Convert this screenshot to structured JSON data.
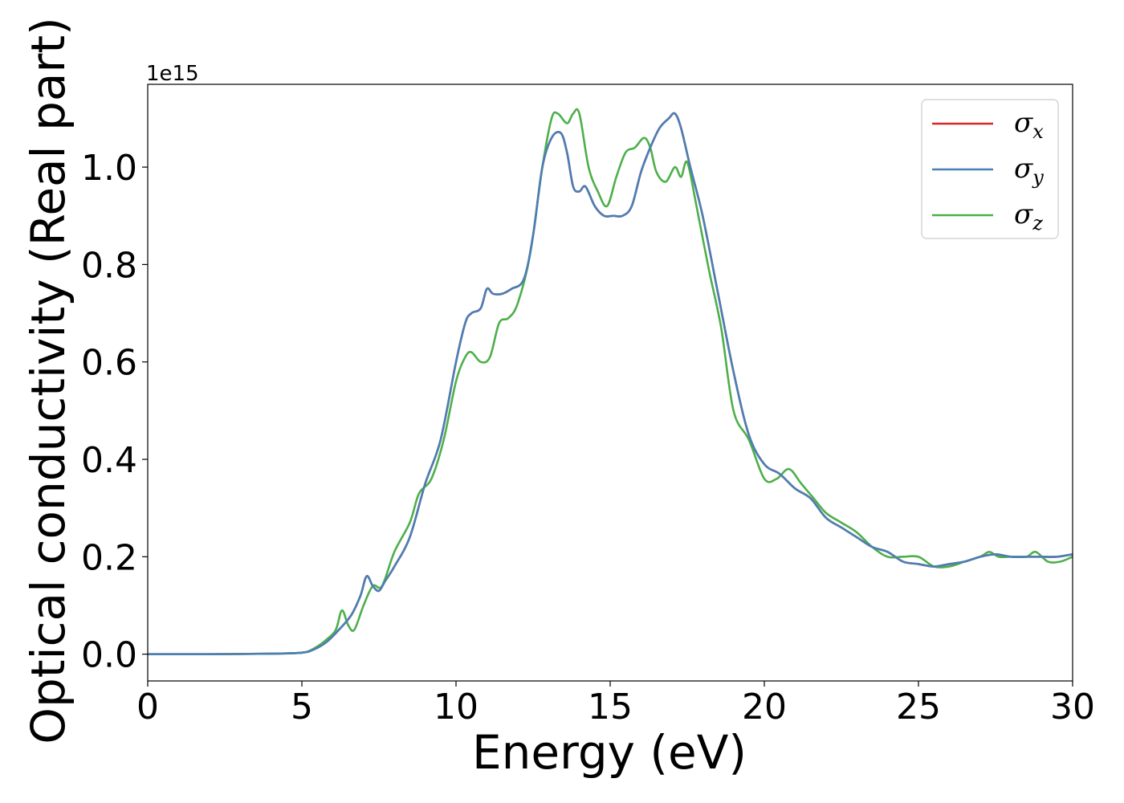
{
  "chart_data": {
    "type": "line",
    "xlabel": "Energy (eV)",
    "ylabel": "Optical conductivity (Real part)",
    "y_offset_label": "1e15",
    "xlim": [
      0,
      30
    ],
    "ylim": [
      -0.055,
      1.17
    ],
    "x_ticks": [
      0,
      5,
      10,
      15,
      20,
      25,
      30
    ],
    "x_tick_labels": [
      "0",
      "5",
      "10",
      "15",
      "20",
      "25",
      "30"
    ],
    "y_ticks": [
      0.0,
      0.2,
      0.4,
      0.6,
      0.8,
      1.0
    ],
    "y_tick_labels": [
      "0.0",
      "0.2",
      "0.4",
      "0.6",
      "0.8",
      "1.0"
    ],
    "grid": false,
    "legend_position": "top-right",
    "series": [
      {
        "name": "σ",
        "subscript": "x",
        "color": "#d62728",
        "x": [
          0,
          2,
          4,
          5,
          5.4,
          5.8,
          6.2,
          6.6,
          6.9,
          7.1,
          7.3,
          7.5,
          7.7,
          8.0,
          8.5,
          9.0,
          9.5,
          10.0,
          10.3,
          10.5,
          10.8,
          11.0,
          11.2,
          11.5,
          11.8,
          12.2,
          12.5,
          12.8,
          13.1,
          13.4,
          13.6,
          13.8,
          14.0,
          14.2,
          14.5,
          14.8,
          15.1,
          15.4,
          15.7,
          16.0,
          16.3,
          16.6,
          16.9,
          17.1,
          17.3,
          17.6,
          18.0,
          18.5,
          19.0,
          19.5,
          20.0,
          20.5,
          21.0,
          21.5,
          22.0,
          22.5,
          23.0,
          23.5,
          24.0,
          24.5,
          25.0,
          25.5,
          26.0,
          26.5,
          27.0,
          27.5,
          28.0,
          28.5,
          29.0,
          29.5,
          30.0
        ],
        "values": [
          0.0,
          0.0,
          0.001,
          0.003,
          0.01,
          0.025,
          0.05,
          0.08,
          0.12,
          0.16,
          0.14,
          0.13,
          0.15,
          0.18,
          0.24,
          0.35,
          0.44,
          0.6,
          0.68,
          0.7,
          0.71,
          0.75,
          0.74,
          0.74,
          0.75,
          0.77,
          0.86,
          1.0,
          1.06,
          1.07,
          1.03,
          0.96,
          0.95,
          0.96,
          0.92,
          0.9,
          0.9,
          0.9,
          0.92,
          0.99,
          1.04,
          1.08,
          1.1,
          1.11,
          1.08,
          1.0,
          0.9,
          0.74,
          0.58,
          0.45,
          0.39,
          0.37,
          0.34,
          0.32,
          0.28,
          0.26,
          0.24,
          0.22,
          0.21,
          0.19,
          0.185,
          0.18,
          0.185,
          0.19,
          0.2,
          0.205,
          0.2,
          0.2,
          0.2,
          0.2,
          0.205
        ]
      },
      {
        "name": "σ",
        "subscript": "y",
        "color": "#4a7fb5",
        "x": [
          0,
          2,
          4,
          5,
          5.4,
          5.8,
          6.2,
          6.6,
          6.9,
          7.1,
          7.3,
          7.5,
          7.7,
          8.0,
          8.5,
          9.0,
          9.5,
          10.0,
          10.3,
          10.5,
          10.8,
          11.0,
          11.2,
          11.5,
          11.8,
          12.2,
          12.5,
          12.8,
          13.1,
          13.4,
          13.6,
          13.8,
          14.0,
          14.2,
          14.5,
          14.8,
          15.1,
          15.4,
          15.7,
          16.0,
          16.3,
          16.6,
          16.9,
          17.1,
          17.3,
          17.6,
          18.0,
          18.5,
          19.0,
          19.5,
          20.0,
          20.5,
          21.0,
          21.5,
          22.0,
          22.5,
          23.0,
          23.5,
          24.0,
          24.5,
          25.0,
          25.5,
          26.0,
          26.5,
          27.0,
          27.5,
          28.0,
          28.5,
          29.0,
          29.5,
          30.0
        ],
        "values": [
          0.0,
          0.0,
          0.001,
          0.003,
          0.01,
          0.025,
          0.05,
          0.08,
          0.12,
          0.16,
          0.14,
          0.13,
          0.15,
          0.18,
          0.24,
          0.35,
          0.44,
          0.6,
          0.68,
          0.7,
          0.71,
          0.75,
          0.74,
          0.74,
          0.75,
          0.77,
          0.86,
          1.0,
          1.06,
          1.07,
          1.03,
          0.96,
          0.95,
          0.96,
          0.92,
          0.9,
          0.9,
          0.9,
          0.92,
          0.99,
          1.04,
          1.08,
          1.1,
          1.11,
          1.08,
          1.0,
          0.9,
          0.74,
          0.58,
          0.45,
          0.39,
          0.37,
          0.34,
          0.32,
          0.28,
          0.26,
          0.24,
          0.22,
          0.21,
          0.19,
          0.185,
          0.18,
          0.185,
          0.19,
          0.2,
          0.205,
          0.2,
          0.2,
          0.2,
          0.2,
          0.205
        ]
      },
      {
        "name": "σ",
        "subscript": "z",
        "color": "#4daf4a",
        "x": [
          0,
          2,
          4,
          5,
          5.4,
          5.8,
          6.1,
          6.3,
          6.5,
          6.7,
          7.0,
          7.3,
          7.6,
          8.0,
          8.5,
          8.8,
          9.2,
          9.6,
          10.0,
          10.3,
          10.5,
          10.8,
          11.1,
          11.4,
          11.7,
          12.0,
          12.4,
          12.8,
          13.1,
          13.3,
          13.6,
          13.8,
          14.0,
          14.3,
          14.6,
          14.9,
          15.2,
          15.5,
          15.8,
          16.1,
          16.3,
          16.5,
          16.8,
          17.1,
          17.3,
          17.5,
          17.8,
          18.2,
          18.6,
          19.0,
          19.5,
          20.0,
          20.4,
          20.8,
          21.2,
          21.6,
          22.0,
          22.5,
          23.0,
          23.5,
          24.0,
          24.5,
          25.0,
          25.5,
          26.0,
          26.5,
          27.0,
          27.3,
          27.6,
          28.0,
          28.5,
          28.8,
          29.2,
          29.6,
          30.0
        ],
        "values": [
          0.0,
          0.0,
          0.001,
          0.003,
          0.012,
          0.03,
          0.05,
          0.09,
          0.06,
          0.05,
          0.1,
          0.14,
          0.14,
          0.21,
          0.27,
          0.33,
          0.36,
          0.44,
          0.56,
          0.61,
          0.62,
          0.6,
          0.61,
          0.68,
          0.69,
          0.72,
          0.82,
          1.0,
          1.1,
          1.11,
          1.09,
          1.11,
          1.11,
          1.0,
          0.95,
          0.92,
          0.98,
          1.03,
          1.04,
          1.06,
          1.04,
          0.99,
          0.97,
          1.0,
          0.98,
          1.01,
          0.92,
          0.79,
          0.67,
          0.5,
          0.44,
          0.36,
          0.36,
          0.38,
          0.35,
          0.32,
          0.29,
          0.27,
          0.25,
          0.22,
          0.2,
          0.2,
          0.2,
          0.18,
          0.18,
          0.19,
          0.2,
          0.21,
          0.2,
          0.2,
          0.2,
          0.21,
          0.19,
          0.19,
          0.2
        ]
      }
    ]
  }
}
